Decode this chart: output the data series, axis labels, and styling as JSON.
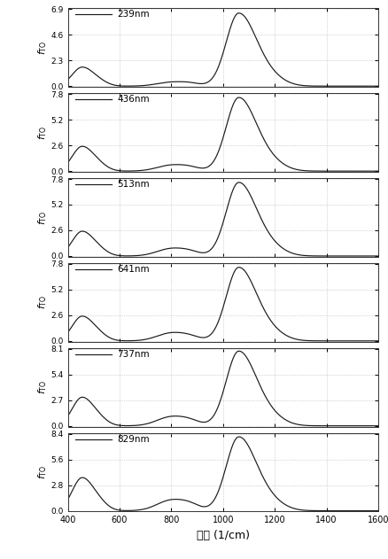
{
  "panels": [
    {
      "label": "239nm",
      "ymax": 6.9,
      "yticks": [
        0.0,
        2.3,
        4.6,
        6.9
      ],
      "p1h": 1.7,
      "p2h": 6.5,
      "p3h": 0.35,
      "p4h": 0.55
    },
    {
      "label": "436nm",
      "ymax": 7.8,
      "yticks": [
        0.0,
        2.6,
        5.2,
        7.8
      ],
      "p1h": 2.5,
      "p2h": 7.4,
      "p3h": 0.6,
      "p4h": 0.8
    },
    {
      "label": "513nm",
      "ymax": 7.8,
      "yticks": [
        0.0,
        2.6,
        5.2,
        7.8
      ],
      "p1h": 2.5,
      "p2h": 7.4,
      "p3h": 0.75,
      "p4h": 0.9
    },
    {
      "label": "641nm",
      "ymax": 7.8,
      "yticks": [
        0.0,
        2.6,
        5.2,
        7.8
      ],
      "p1h": 2.5,
      "p2h": 7.4,
      "p3h": 0.8,
      "p4h": 0.9
    },
    {
      "label": "737nm",
      "ymax": 8.1,
      "yticks": [
        0.0,
        2.7,
        5.4,
        8.1
      ],
      "p1h": 3.0,
      "p2h": 7.8,
      "p3h": 0.95,
      "p4h": 1.1
    },
    {
      "label": "829nm",
      "ymax": 8.4,
      "yticks": [
        0.0,
        2.8,
        5.6,
        8.4
      ],
      "p1h": 3.6,
      "p2h": 8.0,
      "p3h": 1.15,
      "p4h": 1.4
    }
  ],
  "xmin": 400,
  "xmax": 1600,
  "xticks": [
    400,
    600,
    800,
    1000,
    1200,
    1400,
    1600
  ],
  "xlabel": "波数 (1/cm)",
  "ylabel": "$f_{\\mathrm{TO}}$",
  "line_color": "#1a1a1a",
  "bg_color": "#ffffff",
  "grid_color": "#aaaaaa"
}
